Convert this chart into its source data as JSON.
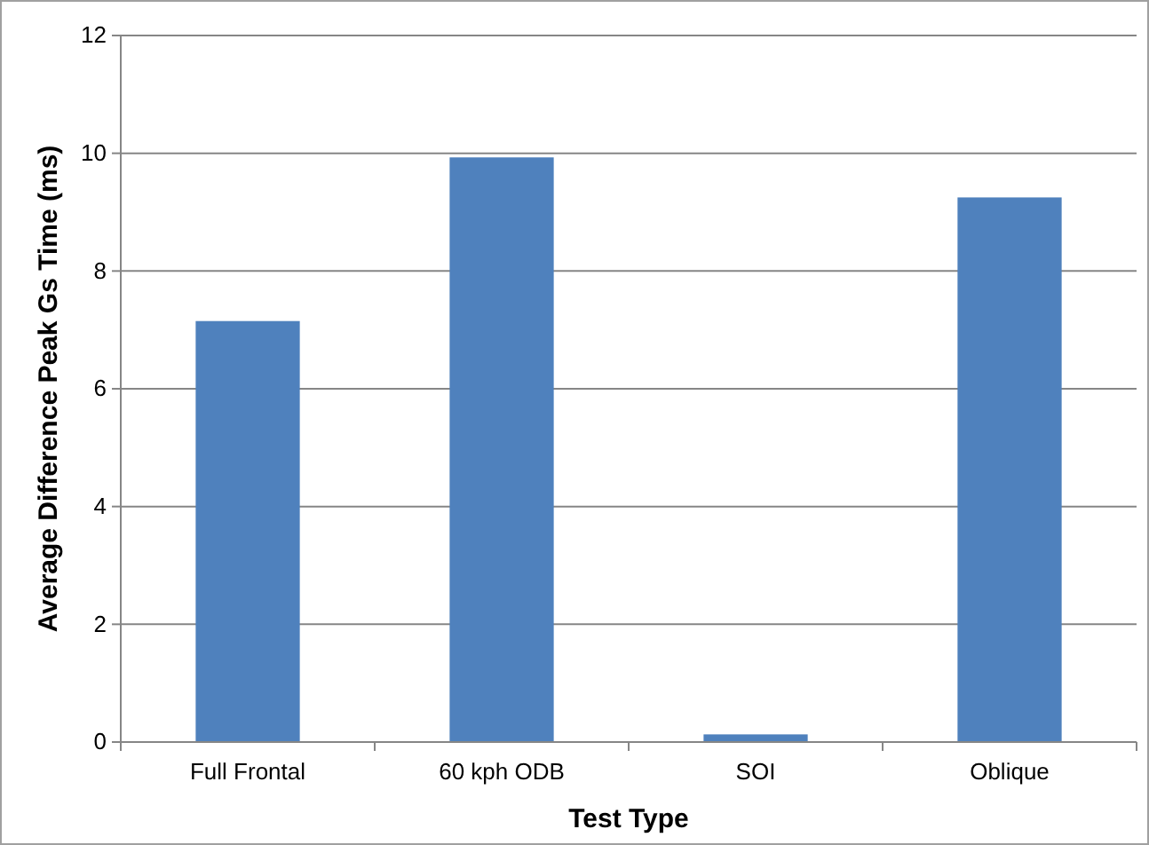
{
  "chart_data": {
    "type": "bar",
    "xlabel": "Test Type",
    "ylabel": "Average Difference Peak Gs Time (ms)",
    "categories": [
      "Full Frontal",
      "60 kph ODB",
      "SOI",
      "Oblique"
    ],
    "values": [
      7.15,
      9.93,
      0.13,
      9.25
    ],
    "color": "#4f81bd",
    "ylim": [
      0,
      12
    ],
    "yticks": [
      0,
      2,
      4,
      6,
      8,
      10,
      12
    ],
    "grid": "y"
  }
}
